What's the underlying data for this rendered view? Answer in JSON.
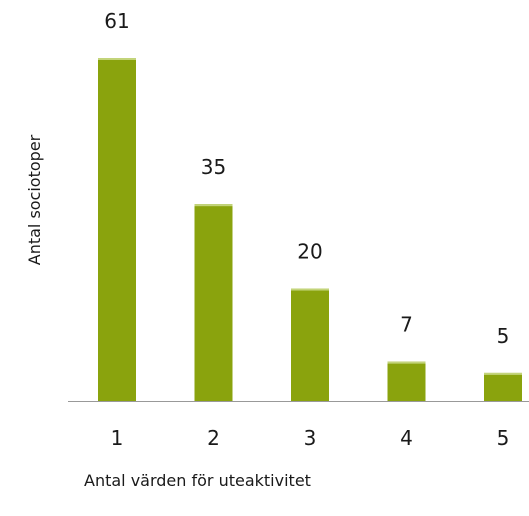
{
  "chart_data": {
    "type": "bar",
    "categories": [
      "1",
      "2",
      "3",
      "4",
      "5"
    ],
    "values": [
      61,
      35,
      20,
      7,
      5
    ],
    "data_labels": [
      "61",
      "35",
      "20",
      "7",
      "5"
    ],
    "xlabel": "Antal värden för uteaktivitet",
    "ylabel": "Antal sociotoper",
    "ylim": [
      0,
      61
    ],
    "grid": false,
    "legend": "none",
    "bar_color": "#8aa30d",
    "bar_highlight_color": "#c3d47a",
    "axis_color": "#999999",
    "text_color": "#1a1a1a"
  }
}
